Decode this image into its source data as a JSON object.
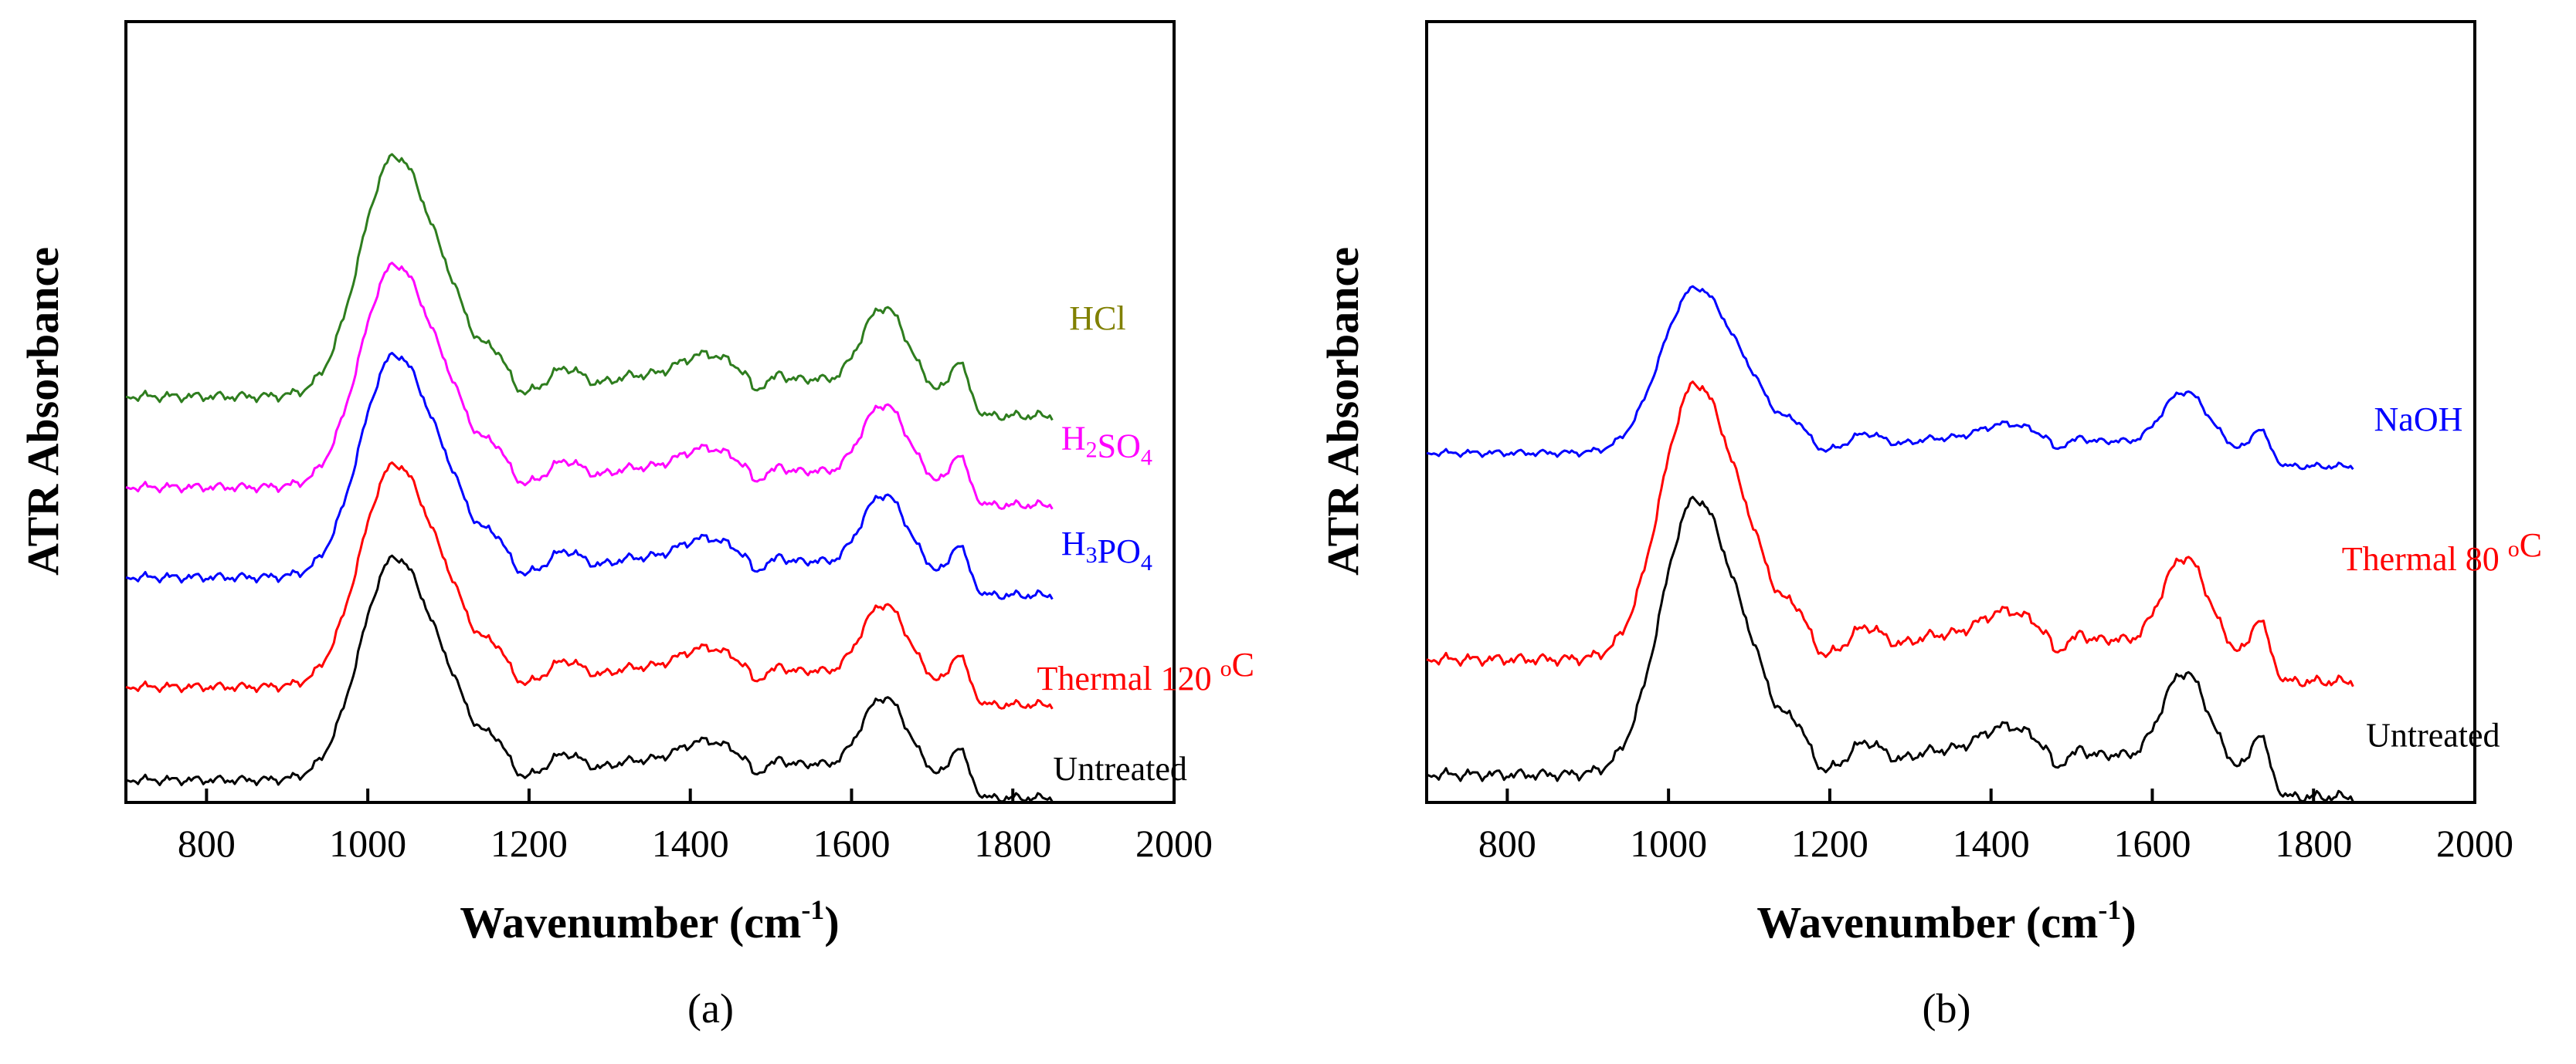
{
  "chart_data": [
    {
      "type": "line",
      "panel": "(a)",
      "xlabel": "Wavenumber (cm",
      "xlabel_sup": "-1",
      "xlabel_end": ")",
      "ylabel": "ATR Absorbance",
      "xlim": [
        700,
        2000
      ],
      "xticks": [
        800,
        1000,
        1200,
        1400,
        1600,
        1800,
        2000
      ],
      "xtick_labels": [
        "800",
        "1000",
        "1200",
        "1400",
        "1600",
        "1800",
        "2000"
      ],
      "y_units": "arbitrary (stacked offsets, no y tick labels)",
      "ylim": [
        -0.1,
        5.1
      ],
      "series": [
        {
          "name": "Untreated",
          "label_parts": [
            {
              "t": "Untreated"
            }
          ],
          "color": "#000000",
          "offset": 0.0,
          "scale": 1.0,
          "label_x": 1850,
          "label_y": 0.05
        },
        {
          "name": "Thermal 120 oC",
          "label_parts": [
            {
              "t": "Thermal 120 "
            },
            {
              "t": "o",
              "sup": true
            },
            {
              "t": "C"
            }
          ],
          "color": "#ff0000",
          "offset": 0.62,
          "scale": 1.0,
          "label_x": 1830,
          "label_y": 0.65
        },
        {
          "name": "H3PO4",
          "label_parts": [
            {
              "t": "H"
            },
            {
              "t": "3",
              "sub": true
            },
            {
              "t": "PO"
            },
            {
              "t": "4",
              "sub": true
            }
          ],
          "color": "#0000ff",
          "offset": 1.35,
          "scale": 1.0,
          "label_x": 1860,
          "label_y": 1.55
        },
        {
          "name": "H2SO4",
          "label_parts": [
            {
              "t": "H"
            },
            {
              "t": "2",
              "sub": true
            },
            {
              "t": "SO"
            },
            {
              "t": "4",
              "sub": true
            }
          ],
          "color": "#ff00ff",
          "offset": 1.95,
          "scale": 1.0,
          "label_x": 1860,
          "label_y": 2.25
        },
        {
          "name": "HCl",
          "label_parts": [
            {
              "t": "HCl"
            }
          ],
          "color": "#808000",
          "line_color": "#2e7d1e",
          "offset": 2.55,
          "scale": 1.08,
          "label_x": 1870,
          "label_y": 3.05
        }
      ]
    },
    {
      "type": "line",
      "panel": "(b)",
      "xlabel": "Wavenumber (cm",
      "xlabel_sup": "-1",
      "xlabel_end": ")",
      "ylabel": "ATR Absorbance",
      "xlim": [
        700,
        2000
      ],
      "xticks": [
        800,
        1000,
        1200,
        1400,
        1600,
        1800,
        2000
      ],
      "xtick_labels": [
        "800",
        "1000",
        "1200",
        "1400",
        "1600",
        "1800",
        "2000"
      ],
      "y_units": "arbitrary (stacked offsets, no y tick labels)",
      "ylim": [
        -0.1,
        4.1
      ],
      "series": [
        {
          "name": "Untreated",
          "label_parts": [
            {
              "t": "Untreated"
            }
          ],
          "color": "#000000",
          "offset": 0.0,
          "scale": 1.0,
          "label_x": 1865,
          "label_y": 0.2
        },
        {
          "name": "Thermal 80 oC",
          "label_parts": [
            {
              "t": "Thermal 80 "
            },
            {
              "t": "o",
              "sup": true
            },
            {
              "t": "C"
            }
          ],
          "color": "#ff0000",
          "offset": 0.62,
          "scale": 1.0,
          "label_x": 1835,
          "label_y": 1.15
        },
        {
          "name": "NaOH",
          "label_parts": [
            {
              "t": "NaOH"
            }
          ],
          "color": "#0000ff",
          "offset": 1.75,
          "scale": 0.6,
          "label_x": 1875,
          "label_y": 1.9
        }
      ]
    }
  ]
}
